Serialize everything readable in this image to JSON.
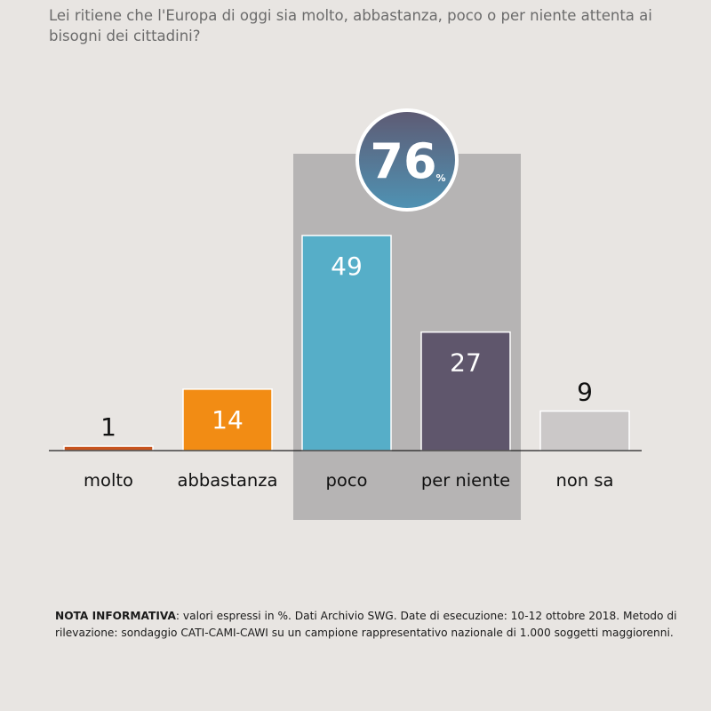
{
  "question": "Lei ritiene che l'Europa di oggi sia molto, abbastanza, poco o per niente attenta ai bisogni dei cittadini?",
  "highlight": {
    "value": "76",
    "unit": "%"
  },
  "note": {
    "label": "NOTA INFORMATIVA",
    "text": ": valori espressi in %. Dati Archivio SWG. Date di esecuzione: 10-12 ottobre 2018. Metodo di rilevazione: sondaggio CATI-CAMI-CAWI su un campione rappresentativo nazionale di 1.000 soggetti maggiorenni."
  },
  "chart_data": {
    "type": "bar",
    "title": "",
    "xlabel": "",
    "ylabel": "",
    "categories": [
      "molto",
      "abbastanza",
      "poco",
      "per niente",
      "non sa"
    ],
    "values": [
      1,
      14,
      49,
      27,
      9
    ],
    "colors": [
      "#c8541e",
      "#f28c14",
      "#56aec8",
      "#5f566c",
      "#cbc8c8"
    ],
    "label_colors": [
      "#111111",
      "#ffffff",
      "#ffffff",
      "#ffffff",
      "#111111"
    ],
    "highlighted_categories": [
      "poco",
      "per niente"
    ],
    "ylim": [
      0,
      49
    ],
    "grid": false,
    "legend": "none"
  }
}
